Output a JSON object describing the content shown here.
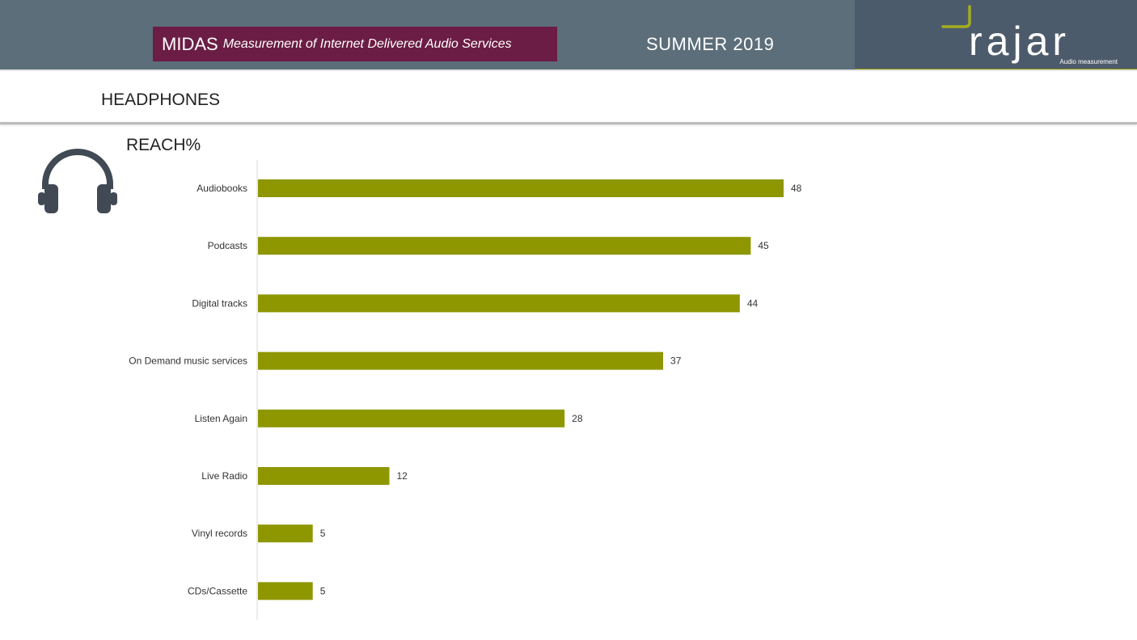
{
  "header": {
    "program": "MIDAS",
    "program_subtitle": "Measurement of Internet Delivered Audio Services",
    "season": "SUMMER 2019",
    "logo_text": "rajar",
    "logo_tagline": "Audio measurement"
  },
  "page": {
    "section_title": "HEADPHONES"
  },
  "colors": {
    "header_bg": "#5c6e7a",
    "logo_bg": "#4c5b6b",
    "midas_box": "#6b1d45",
    "bar": "#8e9600",
    "icon": "#414a54"
  },
  "icons": {
    "headphones": "headphones-icon"
  },
  "chart_data": {
    "type": "bar",
    "orientation": "horizontal",
    "title": "REACH%",
    "categories": [
      "Audiobooks",
      "Podcasts",
      "Digital tracks",
      "On Demand music services",
      "Listen Again",
      "Live Radio",
      "Vinyl records",
      "CDs/Cassette"
    ],
    "values": [
      48,
      45,
      44,
      37,
      28,
      12,
      5,
      5
    ],
    "xlim": [
      0,
      100
    ],
    "grid": false,
    "legend": "none"
  }
}
